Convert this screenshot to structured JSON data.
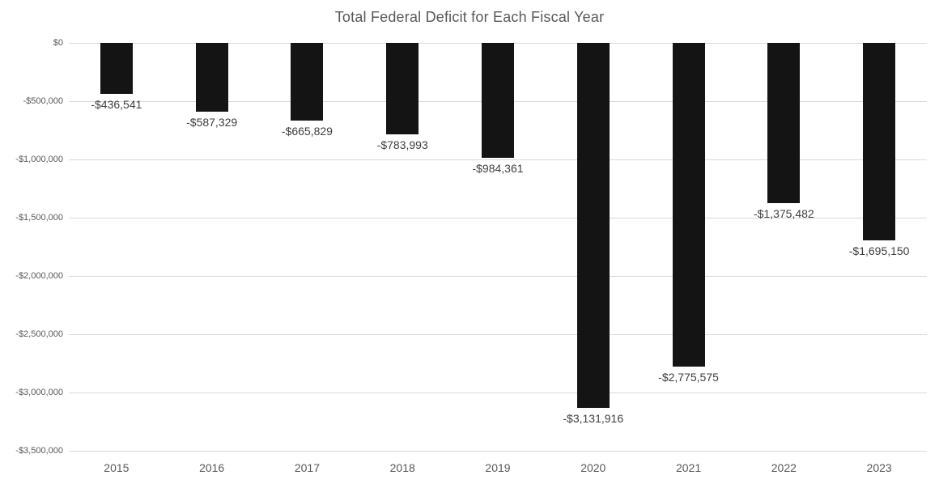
{
  "title": "Total Federal Deficit for Each Fiscal Year",
  "chart_data": {
    "type": "bar",
    "title": "Total Federal Deficit for Each Fiscal Year",
    "xlabel": "",
    "ylabel": "",
    "categories": [
      "2015",
      "2016",
      "2017",
      "2018",
      "2019",
      "2020",
      "2021",
      "2022",
      "2023"
    ],
    "values": [
      -436541,
      -587329,
      -665829,
      -783993,
      -984361,
      -3131916,
      -2775575,
      -1375482,
      -1695150
    ],
    "data_labels": [
      "-$436,541",
      "-$587,329",
      "-$665,829",
      "-$783,993",
      "-$984,361",
      "-$3,131,916",
      "-$2,775,575",
      "-$1,375,482",
      "-$1,695,150"
    ],
    "ylim": [
      -3500000,
      0
    ],
    "ytick_interval": 500000,
    "yticks": [
      0,
      -500000,
      -1000000,
      -1500000,
      -2000000,
      -2500000,
      -3000000,
      -3500000
    ],
    "ytick_labels": [
      "$0",
      "-$500,000",
      "-$1,000,000",
      "-$1,500,000",
      "-$2,000,000",
      "-$2,500,000",
      "-$3,000,000",
      "-$3,500,000"
    ],
    "grid": true,
    "legend": false,
    "colors": {
      "bar": "#141414",
      "gridline": "#d9d9d9",
      "axis_text": "#595959",
      "data_label_text": "#3f3f3f",
      "title_text": "#595959",
      "background": "#ffffff"
    }
  }
}
